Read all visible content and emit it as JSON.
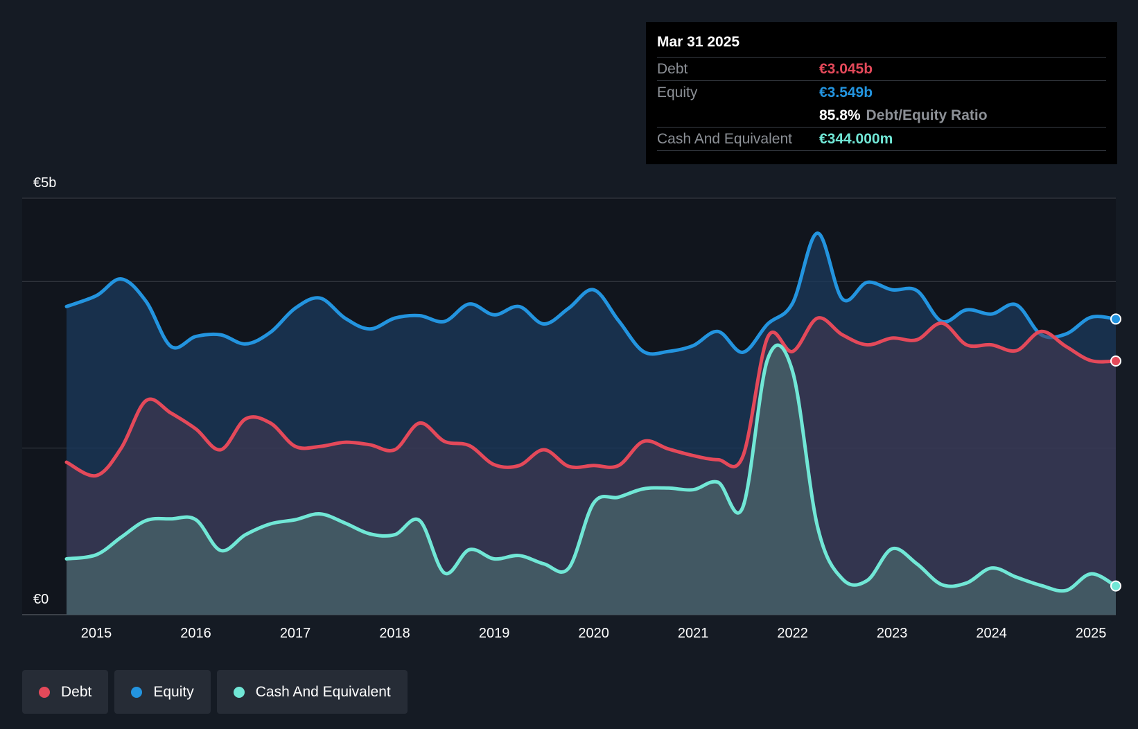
{
  "colors": {
    "background": "#151b24",
    "plot_background": "#11151d",
    "debt": "#e4495a",
    "equity": "#2394df",
    "cash": "#71e7d6",
    "grid": "#3a3f47"
  },
  "tooltip": {
    "date": "Mar 31 2025",
    "debt_label": "Debt",
    "debt_value": "€3.045b",
    "equity_label": "Equity",
    "equity_value": "€3.549b",
    "ratio_value": "85.8%",
    "ratio_label": "Debt/Equity Ratio",
    "cash_label": "Cash And Equivalent",
    "cash_value": "€344.000m"
  },
  "legend": {
    "items": [
      {
        "label": "Debt",
        "color": "#e4495a"
      },
      {
        "label": "Equity",
        "color": "#2394df"
      },
      {
        "label": "Cash And Equivalent",
        "color": "#71e7d6"
      }
    ]
  },
  "chart_data": {
    "type": "area",
    "title": "",
    "xlabel": "",
    "ylabel": "",
    "unit": "€b",
    "y_tick_labels": [
      {
        "value": 0,
        "label": "€0"
      },
      {
        "value": 5,
        "label": "€5b"
      }
    ],
    "gridlines": [
      0,
      2,
      4,
      5
    ],
    "ylim": [
      0,
      5
    ],
    "xlim": [
      2014.7,
      2025.25
    ],
    "x_ticks": [
      2015,
      2016,
      2017,
      2018,
      2019,
      2020,
      2021,
      2022,
      2023,
      2024,
      2025
    ],
    "series": [
      {
        "name": "Equity",
        "color": "#2394df",
        "points": [
          [
            2014.7,
            3.7
          ],
          [
            2015.0,
            3.83
          ],
          [
            2015.25,
            4.03
          ],
          [
            2015.5,
            3.76
          ],
          [
            2015.75,
            3.22
          ],
          [
            2016.0,
            3.34
          ],
          [
            2016.25,
            3.36
          ],
          [
            2016.5,
            3.25
          ],
          [
            2016.75,
            3.39
          ],
          [
            2017.0,
            3.68
          ],
          [
            2017.25,
            3.8
          ],
          [
            2017.5,
            3.56
          ],
          [
            2017.75,
            3.43
          ],
          [
            2018.0,
            3.56
          ],
          [
            2018.25,
            3.59
          ],
          [
            2018.5,
            3.52
          ],
          [
            2018.75,
            3.73
          ],
          [
            2019.0,
            3.6
          ],
          [
            2019.25,
            3.7
          ],
          [
            2019.5,
            3.49
          ],
          [
            2019.75,
            3.68
          ],
          [
            2020.0,
            3.9
          ],
          [
            2020.25,
            3.53
          ],
          [
            2020.5,
            3.16
          ],
          [
            2020.75,
            3.16
          ],
          [
            2021.0,
            3.23
          ],
          [
            2021.25,
            3.4
          ],
          [
            2021.5,
            3.15
          ],
          [
            2021.75,
            3.49
          ],
          [
            2022.0,
            3.74
          ],
          [
            2022.25,
            4.58
          ],
          [
            2022.5,
            3.79
          ],
          [
            2022.75,
            3.99
          ],
          [
            2023.0,
            3.9
          ],
          [
            2023.25,
            3.89
          ],
          [
            2023.5,
            3.52
          ],
          [
            2023.75,
            3.66
          ],
          [
            2024.0,
            3.61
          ],
          [
            2024.25,
            3.72
          ],
          [
            2024.5,
            3.36
          ],
          [
            2024.75,
            3.37
          ],
          [
            2025.0,
            3.57
          ],
          [
            2025.25,
            3.549
          ]
        ]
      },
      {
        "name": "Debt",
        "color": "#e4495a",
        "points": [
          [
            2014.7,
            1.83
          ],
          [
            2015.0,
            1.67
          ],
          [
            2015.25,
            2.0
          ],
          [
            2015.5,
            2.57
          ],
          [
            2015.75,
            2.42
          ],
          [
            2016.0,
            2.23
          ],
          [
            2016.25,
            1.98
          ],
          [
            2016.5,
            2.35
          ],
          [
            2016.75,
            2.3
          ],
          [
            2017.0,
            2.02
          ],
          [
            2017.25,
            2.02
          ],
          [
            2017.5,
            2.07
          ],
          [
            2017.75,
            2.04
          ],
          [
            2018.0,
            1.98
          ],
          [
            2018.25,
            2.3
          ],
          [
            2018.5,
            2.08
          ],
          [
            2018.75,
            2.03
          ],
          [
            2019.0,
            1.8
          ],
          [
            2019.25,
            1.79
          ],
          [
            2019.5,
            1.98
          ],
          [
            2019.75,
            1.78
          ],
          [
            2020.0,
            1.79
          ],
          [
            2020.25,
            1.79
          ],
          [
            2020.5,
            2.08
          ],
          [
            2020.75,
            1.99
          ],
          [
            2021.0,
            1.91
          ],
          [
            2021.25,
            1.86
          ],
          [
            2021.5,
            1.9
          ],
          [
            2021.75,
            3.33
          ],
          [
            2022.0,
            3.16
          ],
          [
            2022.25,
            3.56
          ],
          [
            2022.5,
            3.36
          ],
          [
            2022.75,
            3.24
          ],
          [
            2023.0,
            3.32
          ],
          [
            2023.25,
            3.3
          ],
          [
            2023.5,
            3.5
          ],
          [
            2023.75,
            3.24
          ],
          [
            2024.0,
            3.24
          ],
          [
            2024.25,
            3.17
          ],
          [
            2024.5,
            3.4
          ],
          [
            2024.75,
            3.22
          ],
          [
            2025.0,
            3.05
          ],
          [
            2025.25,
            3.045
          ]
        ]
      },
      {
        "name": "Cash And Equivalent",
        "color": "#71e7d6",
        "points": [
          [
            2014.7,
            0.67
          ],
          [
            2015.0,
            0.72
          ],
          [
            2015.25,
            0.93
          ],
          [
            2015.5,
            1.13
          ],
          [
            2015.75,
            1.15
          ],
          [
            2016.0,
            1.14
          ],
          [
            2016.25,
            0.77
          ],
          [
            2016.5,
            0.96
          ],
          [
            2016.75,
            1.09
          ],
          [
            2017.0,
            1.14
          ],
          [
            2017.25,
            1.21
          ],
          [
            2017.5,
            1.1
          ],
          [
            2017.75,
            0.97
          ],
          [
            2018.0,
            0.96
          ],
          [
            2018.25,
            1.13
          ],
          [
            2018.5,
            0.5
          ],
          [
            2018.75,
            0.78
          ],
          [
            2019.0,
            0.67
          ],
          [
            2019.25,
            0.71
          ],
          [
            2019.5,
            0.61
          ],
          [
            2019.75,
            0.56
          ],
          [
            2020.0,
            1.34
          ],
          [
            2020.25,
            1.41
          ],
          [
            2020.5,
            1.51
          ],
          [
            2020.75,
            1.52
          ],
          [
            2021.0,
            1.5
          ],
          [
            2021.25,
            1.59
          ],
          [
            2021.5,
            1.29
          ],
          [
            2021.75,
            3.07
          ],
          [
            2022.0,
            2.92
          ],
          [
            2022.25,
            1.06
          ],
          [
            2022.5,
            0.43
          ],
          [
            2022.75,
            0.41
          ],
          [
            2023.0,
            0.79
          ],
          [
            2023.25,
            0.61
          ],
          [
            2023.5,
            0.36
          ],
          [
            2023.75,
            0.38
          ],
          [
            2024.0,
            0.56
          ],
          [
            2024.25,
            0.45
          ],
          [
            2024.5,
            0.35
          ],
          [
            2024.75,
            0.29
          ],
          [
            2025.0,
            0.49
          ],
          [
            2025.25,
            0.344
          ]
        ]
      }
    ]
  }
}
